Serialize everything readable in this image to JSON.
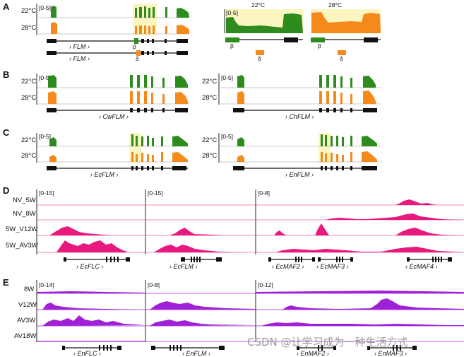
{
  "colors": {
    "green": "#2e8b1e",
    "orange": "#f5891c",
    "pink": "#e8197d",
    "purple": "#a020d8",
    "highlight": "#fbf6c0",
    "axis": "#222222",
    "baseline": "#bdbdbd"
  },
  "panelA": {
    "letter": "A",
    "rows": [
      "22°C",
      "28°C"
    ],
    "scale": "[0-5]",
    "gene": "FLM",
    "beta": "β",
    "delta": "δ",
    "zoom": {
      "temp1": "22°C",
      "temp2": "28°C",
      "scale": "[0-5]",
      "beta": "β",
      "delta": "δ"
    }
  },
  "panelB": {
    "letter": "B",
    "rows": [
      "22°C",
      "28°C"
    ],
    "scale": "[0-5]",
    "genes": [
      "CwFLM",
      "ChFLM"
    ]
  },
  "panelC": {
    "letter": "C",
    "rows": [
      "22°C",
      "28°C"
    ],
    "scale": "[0-5]",
    "genes": [
      "EcFLM",
      "EnFLM"
    ]
  },
  "panelD": {
    "letter": "D",
    "rows": [
      "NV_5W",
      "NV_8W",
      "5W_V12W",
      "5W_AV3W"
    ],
    "scales": [
      "[0-15]",
      "[0-15]",
      "[0-8]"
    ],
    "genes": [
      "EcFLC",
      "EcFLM",
      "EcMAF2",
      "EcMAF3",
      "EcMAF4"
    ]
  },
  "panelE": {
    "letter": "E",
    "rows": [
      "8W",
      "V12W",
      "AV3W",
      "AV18W"
    ],
    "scales": [
      "[0-14]",
      "[0-8]",
      "[0-12]"
    ],
    "genes": [
      "EnFLC",
      "EnFLM",
      "EnMAF2",
      "EnMAF3"
    ]
  },
  "watermark": "CSDN @让学习成为一种生活方式"
}
